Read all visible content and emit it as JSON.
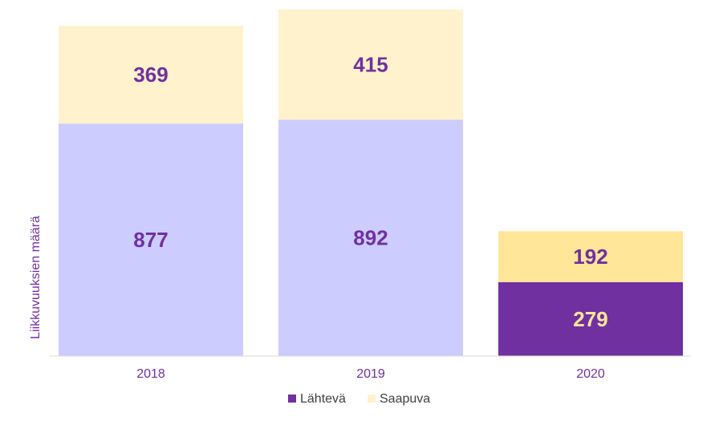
{
  "chart_data": {
    "type": "bar",
    "stacked": true,
    "categories": [
      "2018",
      "2019",
      "2020"
    ],
    "series": [
      {
        "name": "Lähtevä",
        "values": [
          877,
          892,
          279
        ]
      },
      {
        "name": "Saapuva",
        "values": [
          369,
          415,
          192
        ]
      }
    ],
    "ylabel": "Liikkuvuuksien määrä",
    "ylim": [
      0,
      1307
    ],
    "legend_position": "bottom",
    "grid": false,
    "colors": {
      "bars": [
        [
          "#ccccff",
          "#fff2cc"
        ],
        [
          "#ccccff",
          "#fff2cc"
        ],
        [
          "#7030a0",
          "#ffe699"
        ]
      ],
      "labels": [
        [
          "#7030a0",
          "#7030a0"
        ],
        [
          "#7030a0",
          "#7030a0"
        ],
        [
          "#ffe699",
          "#7030a0"
        ]
      ],
      "legend": [
        "#7030a0",
        "#fff2cc"
      ],
      "axis": "#d9d9d9"
    }
  }
}
